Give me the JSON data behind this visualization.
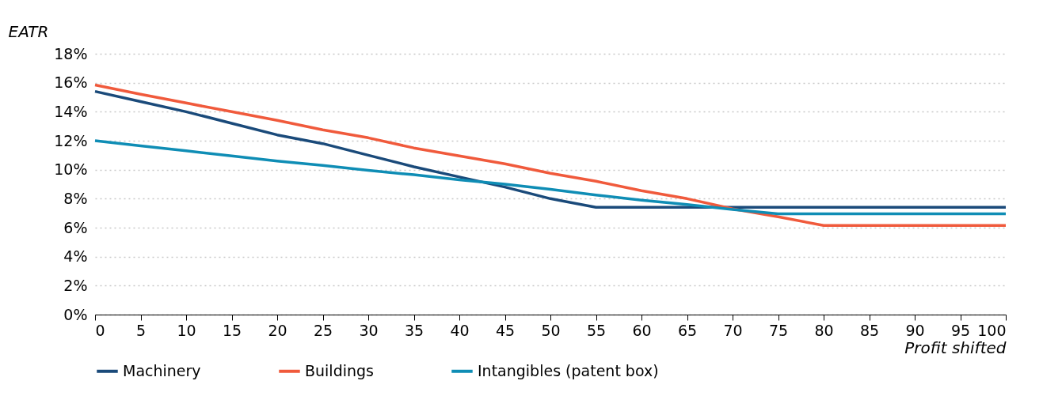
{
  "chart_data": {
    "type": "line",
    "xlabel": "Profit shifted",
    "ylabel": "EATR",
    "x": [
      0,
      5,
      10,
      15,
      20,
      25,
      30,
      35,
      40,
      45,
      50,
      55,
      60,
      65,
      70,
      75,
      80,
      85,
      90,
      95,
      100
    ],
    "series": [
      {
        "name": "Machinery",
        "color": "#1a4a7a",
        "values": [
          15.4,
          14.7,
          14.0,
          13.2,
          12.4,
          11.8,
          11.0,
          10.2,
          9.5,
          8.8,
          8.0,
          7.4,
          7.4,
          7.4,
          7.4,
          7.4,
          7.4,
          7.4,
          7.4,
          7.4,
          7.4
        ]
      },
      {
        "name": "Buildings",
        "color": "#f05a3c",
        "values": [
          15.85,
          15.2,
          14.6,
          14.0,
          13.4,
          12.75,
          12.2,
          11.5,
          10.95,
          10.4,
          9.75,
          9.2,
          8.55,
          8.0,
          7.3,
          6.75,
          6.15,
          6.15,
          6.15,
          6.15,
          6.15
        ]
      },
      {
        "name": "Intangibles (patent box)",
        "color": "#0f8db5",
        "values": [
          12.0,
          11.65,
          11.3,
          10.95,
          10.6,
          10.3,
          9.95,
          9.65,
          9.3,
          9.0,
          8.65,
          8.25,
          7.9,
          7.6,
          7.25,
          6.95,
          6.95,
          6.95,
          6.95,
          6.95,
          6.95
        ]
      }
    ],
    "xlim": [
      0,
      100
    ],
    "xticks": [
      0,
      5,
      10,
      15,
      20,
      25,
      30,
      35,
      40,
      45,
      50,
      55,
      60,
      65,
      70,
      75,
      80,
      85,
      90,
      95,
      100
    ],
    "ylim": [
      0,
      18
    ],
    "yticks": [
      {
        "value": 0,
        "label": "0%"
      },
      {
        "value": 2,
        "label": "2%"
      },
      {
        "value": 4,
        "label": "4%"
      },
      {
        "value": 6,
        "label": "6%"
      },
      {
        "value": 8,
        "label": "8%"
      },
      {
        "value": 10,
        "label": "10%"
      },
      {
        "value": 12,
        "label": "12%"
      },
      {
        "value": 14,
        "label": "14%"
      },
      {
        "value": 16,
        "label": "16%"
      },
      {
        "value": 18,
        "label": "18%"
      }
    ],
    "grid": "y",
    "legend": "bottom"
  }
}
